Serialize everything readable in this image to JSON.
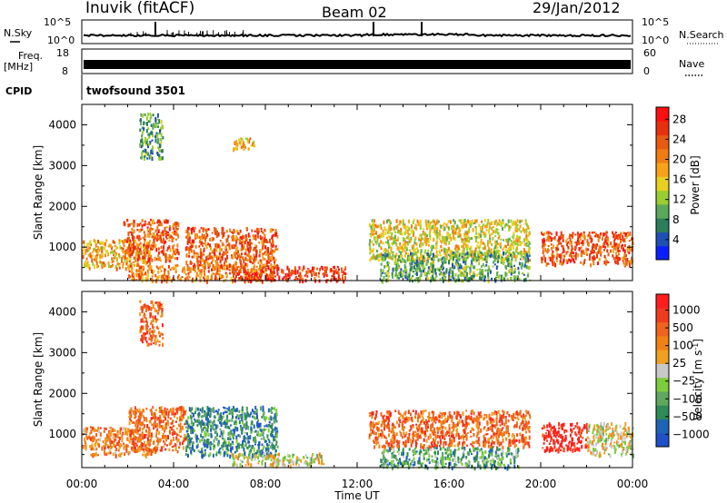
{
  "header": {
    "station": "Inuvik (fitACF)",
    "beam": "Beam 02",
    "date": "29/Jan/2012"
  },
  "strip_panels": {
    "noise": {
      "left_label": "N.Sky",
      "right_label": "N.Search",
      "left_ticks": [
        "10^5",
        "10^0"
      ],
      "right_ticks": [
        "10^5",
        "10^0"
      ]
    },
    "freq": {
      "left_label_line1": "Freq.",
      "left_label_line2": "[MHz]",
      "right_label": "Nave",
      "left_ticks": [
        "18",
        "8"
      ],
      "right_ticks": [
        "60",
        "0"
      ]
    },
    "cpid": {
      "label": "CPID",
      "value": "twofsound 3501"
    }
  },
  "chart_data": [
    {
      "type": "heatmap",
      "title": "",
      "xlabel": "Time UT",
      "ylabel": "Slant Range [km]",
      "x_ticks": [
        "00:00",
        "04:00",
        "08:00",
        "12:00",
        "16:00",
        "20:00",
        "00:00"
      ],
      "xlim_hours": [
        0,
        24
      ],
      "ylim_km": [
        180,
        4500
      ],
      "y_ticks": [
        1000,
        2000,
        3000,
        4000
      ],
      "colorbar": {
        "label": "Power [dB]",
        "ticks": [
          "4",
          "8",
          "12",
          "16",
          "20",
          "24",
          "28"
        ],
        "colors": [
          "#0a1eff",
          "#1e50b4",
          "#2a7f5a",
          "#5aa95a",
          "#9acd32",
          "#e8d020",
          "#f7a31a",
          "#f07c14",
          "#e85a10",
          "#e83010",
          "#ff1010"
        ]
      },
      "regions": [
        {
          "x": [
            0.0,
            3.0
          ],
          "y": [
            500,
            1200
          ],
          "level": 6
        },
        {
          "x": [
            1.8,
            4.2
          ],
          "y": [
            700,
            1700
          ],
          "level": 8
        },
        {
          "x": [
            2.0,
            8.5
          ],
          "y": [
            200,
            600
          ],
          "level": 7
        },
        {
          "x": [
            4.5,
            8.5
          ],
          "y": [
            500,
            1500
          ],
          "level": 8
        },
        {
          "x": [
            6.5,
            11.5
          ],
          "y": [
            200,
            550
          ],
          "level": 9
        },
        {
          "x": [
            12.5,
            19.5
          ],
          "y": [
            700,
            1700
          ],
          "level": 5
        },
        {
          "x": [
            13.0,
            19.5
          ],
          "y": [
            200,
            900
          ],
          "level": 3
        },
        {
          "x": [
            20.0,
            24.0
          ],
          "y": [
            600,
            1400
          ],
          "level": 8
        },
        {
          "x": [
            2.5,
            3.5
          ],
          "y": [
            3200,
            4300
          ],
          "level": 3
        },
        {
          "x": [
            6.5,
            7.5
          ],
          "y": [
            3400,
            3700
          ],
          "level": 6
        }
      ]
    },
    {
      "type": "heatmap",
      "title": "",
      "xlabel": "Time UT",
      "ylabel": "Slant Range [km]",
      "x_ticks": [
        "00:00",
        "04:00",
        "08:00",
        "12:00",
        "16:00",
        "20:00",
        "00:00"
      ],
      "xlim_hours": [
        0,
        24
      ],
      "ylim_km": [
        180,
        4500
      ],
      "y_ticks": [
        1000,
        2000,
        3000,
        4000
      ],
      "colorbar": {
        "label": "Velocity [m s",
        "label_sup": "-1",
        "label_tail": "]",
        "ticks": [
          "1000",
          "500",
          "100",
          "25",
          "−25",
          "−100",
          "−500",
          "−1000"
        ],
        "colors": [
          "#2050c8",
          "#1e64b4",
          "#2e8b57",
          "#5fa85f",
          "#7ccd3c",
          "#c8c8c8",
          "#f0a020",
          "#f08214",
          "#f0641e",
          "#f03c1e",
          "#ff1e1e"
        ]
      },
      "regions": [
        {
          "x": [
            0.0,
            3.0
          ],
          "y": [
            500,
            1200
          ],
          "level": 7
        },
        {
          "x": [
            2.0,
            4.5
          ],
          "y": [
            600,
            1700
          ],
          "level": 8
        },
        {
          "x": [
            4.5,
            8.5
          ],
          "y": [
            500,
            1700
          ],
          "level": 2
        },
        {
          "x": [
            6.5,
            10.5
          ],
          "y": [
            250,
            550
          ],
          "level": 5
        },
        {
          "x": [
            12.5,
            19.5
          ],
          "y": [
            700,
            1600
          ],
          "level": 8
        },
        {
          "x": [
            13.0,
            19.0
          ],
          "y": [
            200,
            700
          ],
          "level": 3
        },
        {
          "x": [
            20.0,
            22.0
          ],
          "y": [
            600,
            1300
          ],
          "level": 10
        },
        {
          "x": [
            22.0,
            24.0
          ],
          "y": [
            500,
            1300
          ],
          "level": 5
        },
        {
          "x": [
            2.5,
            3.5
          ],
          "y": [
            3200,
            4300
          ],
          "level": 8
        }
      ]
    }
  ]
}
